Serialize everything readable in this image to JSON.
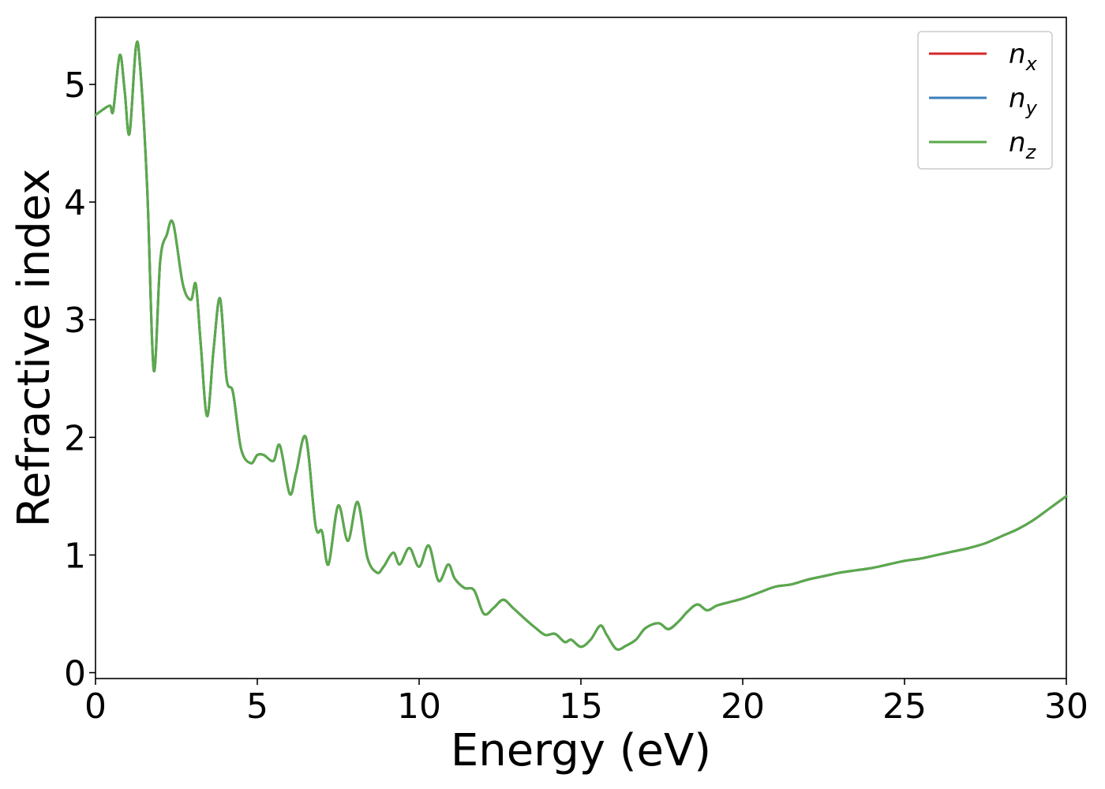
{
  "chart_data": {
    "type": "line",
    "xlabel": "Energy (eV)",
    "ylabel": "Refractive index",
    "xlim": [
      0,
      30
    ],
    "ylim": [
      -0.05,
      5.57
    ],
    "xticks": [
      0,
      5,
      10,
      15,
      20,
      25,
      30
    ],
    "yticks": [
      0,
      1,
      2,
      3,
      4,
      5
    ],
    "grid": false,
    "legend_position": "top-right",
    "series": [
      {
        "name": "n_x",
        "label_main": "n",
        "label_sub": "x",
        "color": "#d62728",
        "x": [
          0,
          0.25,
          0.45,
          0.55,
          0.75,
          0.9,
          1.05,
          1.25,
          1.38,
          1.6,
          1.8,
          2.0,
          2.2,
          2.4,
          2.7,
          2.95,
          3.1,
          3.25,
          3.45,
          3.65,
          3.85,
          4.05,
          4.25,
          4.5,
          4.8,
          5.0,
          5.2,
          5.5,
          5.7,
          6.0,
          6.2,
          6.5,
          6.8,
          7.0,
          7.2,
          7.5,
          7.8,
          8.1,
          8.4,
          8.7,
          8.9,
          9.2,
          9.4,
          9.7,
          10.0,
          10.3,
          10.6,
          10.9,
          11.1,
          11.4,
          11.7,
          12.0,
          12.3,
          12.6,
          12.9,
          13.3,
          13.6,
          13.9,
          14.2,
          14.5,
          14.7,
          15.0,
          15.3,
          15.6,
          15.8,
          16.1,
          16.4,
          16.7,
          17.0,
          17.4,
          17.7,
          18.0,
          18.3,
          18.6,
          18.9,
          19.2,
          19.6,
          20.0,
          20.5,
          21.0,
          21.5,
          22.0,
          22.5,
          23.0,
          23.5,
          24.0,
          24.5,
          25.0,
          25.5,
          26.0,
          26.5,
          27.0,
          27.5,
          28.0,
          28.5,
          29.0,
          29.5,
          30.0
        ],
        "y": [
          4.74,
          4.79,
          4.82,
          4.78,
          5.25,
          4.95,
          4.58,
          5.32,
          5.15,
          4.1,
          2.57,
          3.5,
          3.72,
          3.82,
          3.3,
          3.17,
          3.3,
          2.8,
          2.18,
          2.75,
          3.18,
          2.5,
          2.38,
          1.9,
          1.78,
          1.85,
          1.85,
          1.8,
          1.93,
          1.52,
          1.7,
          2.0,
          1.25,
          1.2,
          0.92,
          1.42,
          1.12,
          1.45,
          0.98,
          0.85,
          0.9,
          1.02,
          0.92,
          1.06,
          0.9,
          1.08,
          0.78,
          0.92,
          0.8,
          0.72,
          0.7,
          0.5,
          0.55,
          0.62,
          0.55,
          0.45,
          0.38,
          0.32,
          0.33,
          0.26,
          0.28,
          0.22,
          0.28,
          0.4,
          0.32,
          0.2,
          0.23,
          0.28,
          0.38,
          0.42,
          0.37,
          0.43,
          0.52,
          0.58,
          0.53,
          0.57,
          0.6,
          0.63,
          0.68,
          0.73,
          0.75,
          0.79,
          0.82,
          0.85,
          0.87,
          0.89,
          0.92,
          0.95,
          0.97,
          1.0,
          1.03,
          1.06,
          1.1,
          1.16,
          1.22,
          1.3,
          1.4,
          1.5
        ]
      },
      {
        "name": "n_y",
        "label_main": "n",
        "label_sub": "y",
        "color": "#3a7eb8",
        "x": [
          0,
          0.25,
          0.45,
          0.55,
          0.75,
          0.9,
          1.05,
          1.25,
          1.38,
          1.6,
          1.8,
          2.0,
          2.2,
          2.4,
          2.7,
          2.95,
          3.1,
          3.25,
          3.45,
          3.65,
          3.85,
          4.05,
          4.25,
          4.5,
          4.8,
          5.0,
          5.2,
          5.5,
          5.7,
          6.0,
          6.2,
          6.5,
          6.8,
          7.0,
          7.2,
          7.5,
          7.8,
          8.1,
          8.4,
          8.7,
          8.9,
          9.2,
          9.4,
          9.7,
          10.0,
          10.3,
          10.6,
          10.9,
          11.1,
          11.4,
          11.7,
          12.0,
          12.3,
          12.6,
          12.9,
          13.3,
          13.6,
          13.9,
          14.2,
          14.5,
          14.7,
          15.0,
          15.3,
          15.6,
          15.8,
          16.1,
          16.4,
          16.7,
          17.0,
          17.4,
          17.7,
          18.0,
          18.3,
          18.6,
          18.9,
          19.2,
          19.6,
          20.0,
          20.5,
          21.0,
          21.5,
          22.0,
          22.5,
          23.0,
          23.5,
          24.0,
          24.5,
          25.0,
          25.5,
          26.0,
          26.5,
          27.0,
          27.5,
          28.0,
          28.5,
          29.0,
          29.5,
          30.0
        ],
        "y": [
          4.74,
          4.79,
          4.82,
          4.78,
          5.25,
          4.95,
          4.58,
          5.32,
          5.15,
          4.1,
          2.57,
          3.5,
          3.72,
          3.82,
          3.3,
          3.17,
          3.3,
          2.8,
          2.18,
          2.75,
          3.18,
          2.5,
          2.38,
          1.9,
          1.78,
          1.85,
          1.85,
          1.8,
          1.93,
          1.52,
          1.7,
          2.0,
          1.25,
          1.2,
          0.92,
          1.42,
          1.12,
          1.45,
          0.98,
          0.85,
          0.9,
          1.02,
          0.92,
          1.06,
          0.9,
          1.08,
          0.78,
          0.92,
          0.8,
          0.72,
          0.7,
          0.5,
          0.55,
          0.62,
          0.55,
          0.45,
          0.38,
          0.32,
          0.33,
          0.26,
          0.28,
          0.22,
          0.28,
          0.4,
          0.32,
          0.2,
          0.23,
          0.28,
          0.38,
          0.42,
          0.37,
          0.43,
          0.52,
          0.58,
          0.53,
          0.57,
          0.6,
          0.63,
          0.68,
          0.73,
          0.75,
          0.79,
          0.82,
          0.85,
          0.87,
          0.89,
          0.92,
          0.95,
          0.97,
          1.0,
          1.03,
          1.06,
          1.1,
          1.16,
          1.22,
          1.3,
          1.4,
          1.5
        ]
      },
      {
        "name": "n_z",
        "label_main": "n",
        "label_sub": "z",
        "color": "#5aaa4a",
        "x": [
          0,
          0.25,
          0.45,
          0.55,
          0.75,
          0.9,
          1.05,
          1.25,
          1.38,
          1.6,
          1.8,
          2.0,
          2.2,
          2.4,
          2.7,
          2.95,
          3.1,
          3.25,
          3.45,
          3.65,
          3.85,
          4.05,
          4.25,
          4.5,
          4.8,
          5.0,
          5.2,
          5.5,
          5.7,
          6.0,
          6.2,
          6.5,
          6.8,
          7.0,
          7.2,
          7.5,
          7.8,
          8.1,
          8.4,
          8.7,
          8.9,
          9.2,
          9.4,
          9.7,
          10.0,
          10.3,
          10.6,
          10.9,
          11.1,
          11.4,
          11.7,
          12.0,
          12.3,
          12.6,
          12.9,
          13.3,
          13.6,
          13.9,
          14.2,
          14.5,
          14.7,
          15.0,
          15.3,
          15.6,
          15.8,
          16.1,
          16.4,
          16.7,
          17.0,
          17.4,
          17.7,
          18.0,
          18.3,
          18.6,
          18.9,
          19.2,
          19.6,
          20.0,
          20.5,
          21.0,
          21.5,
          22.0,
          22.5,
          23.0,
          23.5,
          24.0,
          24.5,
          25.0,
          25.5,
          26.0,
          26.5,
          27.0,
          27.5,
          28.0,
          28.5,
          29.0,
          29.5,
          30.0
        ],
        "y": [
          4.74,
          4.79,
          4.82,
          4.78,
          5.25,
          4.95,
          4.58,
          5.32,
          5.15,
          4.1,
          2.57,
          3.5,
          3.72,
          3.82,
          3.3,
          3.17,
          3.3,
          2.8,
          2.18,
          2.75,
          3.18,
          2.5,
          2.38,
          1.9,
          1.78,
          1.85,
          1.85,
          1.8,
          1.93,
          1.52,
          1.7,
          2.0,
          1.25,
          1.2,
          0.92,
          1.42,
          1.12,
          1.45,
          0.98,
          0.85,
          0.9,
          1.02,
          0.92,
          1.06,
          0.9,
          1.08,
          0.78,
          0.92,
          0.8,
          0.72,
          0.7,
          0.5,
          0.55,
          0.62,
          0.55,
          0.45,
          0.38,
          0.32,
          0.33,
          0.26,
          0.28,
          0.22,
          0.28,
          0.4,
          0.32,
          0.2,
          0.23,
          0.28,
          0.38,
          0.42,
          0.37,
          0.43,
          0.52,
          0.58,
          0.53,
          0.57,
          0.6,
          0.63,
          0.68,
          0.73,
          0.75,
          0.79,
          0.82,
          0.85,
          0.87,
          0.89,
          0.92,
          0.95,
          0.97,
          1.0,
          1.03,
          1.06,
          1.1,
          1.16,
          1.22,
          1.3,
          1.4,
          1.5
        ]
      }
    ]
  }
}
